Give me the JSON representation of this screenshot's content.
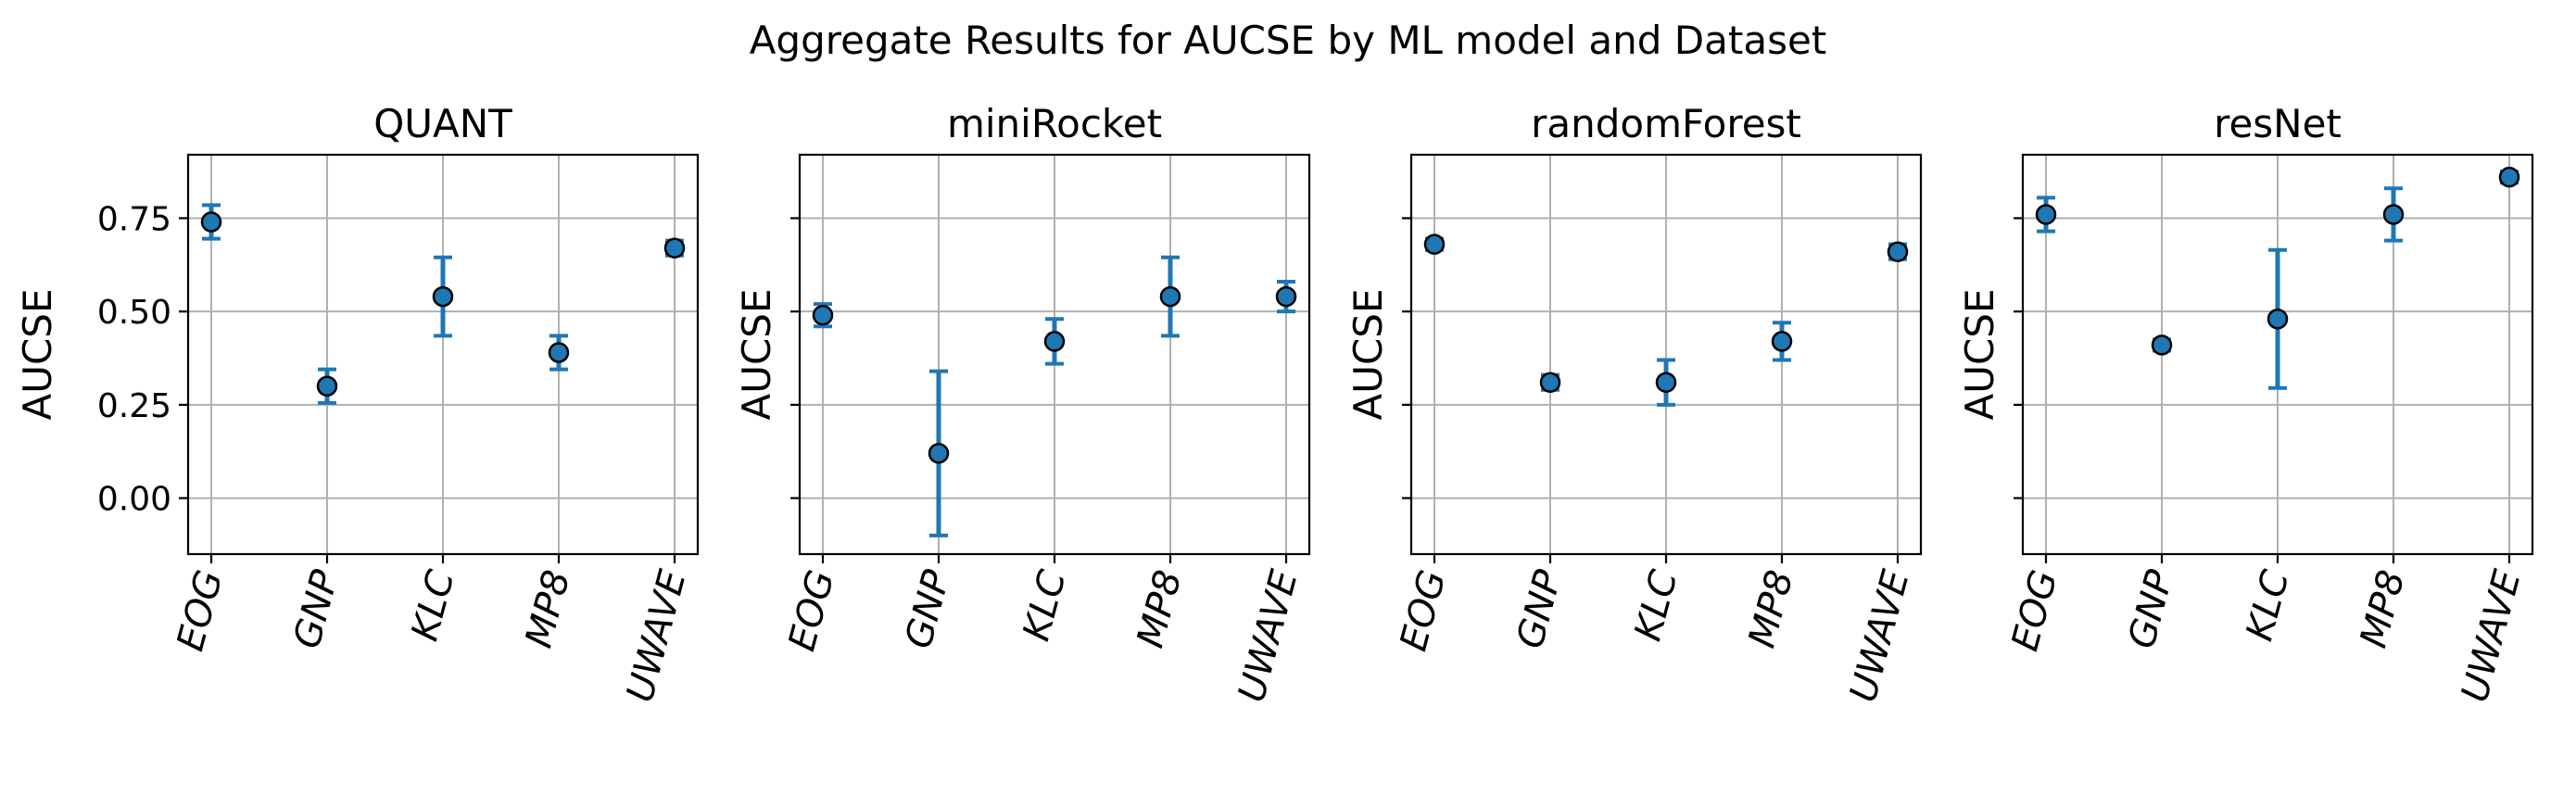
{
  "figure_title": "Aggregate Results for AUCSE by ML model and Dataset",
  "chart_data": [
    {
      "type": "scatter",
      "title": "QUANT",
      "ylabel": "AUCSE",
      "categories": [
        "EOG",
        "GNP",
        "KLC",
        "MP8",
        "UWAVE"
      ],
      "values": [
        0.74,
        0.3,
        0.54,
        0.39,
        0.67
      ],
      "errors": [
        0.045,
        0.045,
        0.105,
        0.045,
        0.02
      ],
      "yticks": [
        0.0,
        0.25,
        0.5,
        0.75
      ],
      "ytick_labels": [
        "0.00",
        "0.25",
        "0.50",
        "0.75"
      ],
      "show_ytick_labels": true,
      "ylim": [
        -0.15,
        0.92
      ],
      "grid": true
    },
    {
      "type": "scatter",
      "title": "miniRocket",
      "ylabel": "AUCSE",
      "categories": [
        "EOG",
        "GNP",
        "KLC",
        "MP8",
        "UWAVE"
      ],
      "values": [
        0.49,
        0.12,
        0.42,
        0.54,
        0.54
      ],
      "errors": [
        0.03,
        0.22,
        0.06,
        0.105,
        0.04
      ],
      "yticks": [
        0.0,
        0.25,
        0.5,
        0.75
      ],
      "ytick_labels": [
        "0.00",
        "0.25",
        "0.50",
        "0.75"
      ],
      "show_ytick_labels": false,
      "ylim": [
        -0.15,
        0.92
      ],
      "grid": true
    },
    {
      "type": "scatter",
      "title": "randomForest",
      "ylabel": "AUCSE",
      "categories": [
        "EOG",
        "GNP",
        "KLC",
        "MP8",
        "UWAVE"
      ],
      "values": [
        0.68,
        0.31,
        0.31,
        0.42,
        0.66
      ],
      "errors": [
        0.015,
        0.02,
        0.06,
        0.05,
        0.02
      ],
      "yticks": [
        0.0,
        0.25,
        0.5,
        0.75
      ],
      "ytick_labels": [
        "0.00",
        "0.25",
        "0.50",
        "0.75"
      ],
      "show_ytick_labels": false,
      "ylim": [
        -0.15,
        0.92
      ],
      "grid": true
    },
    {
      "type": "scatter",
      "title": "resNet",
      "ylabel": "AUCSE",
      "categories": [
        "EOG",
        "GNP",
        "KLC",
        "MP8",
        "UWAVE"
      ],
      "values": [
        0.76,
        0.41,
        0.48,
        0.76,
        0.86
      ],
      "errors": [
        0.045,
        0.015,
        0.185,
        0.07,
        0.015
      ],
      "yticks": [
        0.0,
        0.25,
        0.5,
        0.75
      ],
      "ytick_labels": [
        "0.00",
        "0.25",
        "0.50",
        "0.75"
      ],
      "show_ytick_labels": false,
      "ylim": [
        -0.15,
        0.92
      ],
      "grid": true
    }
  ]
}
